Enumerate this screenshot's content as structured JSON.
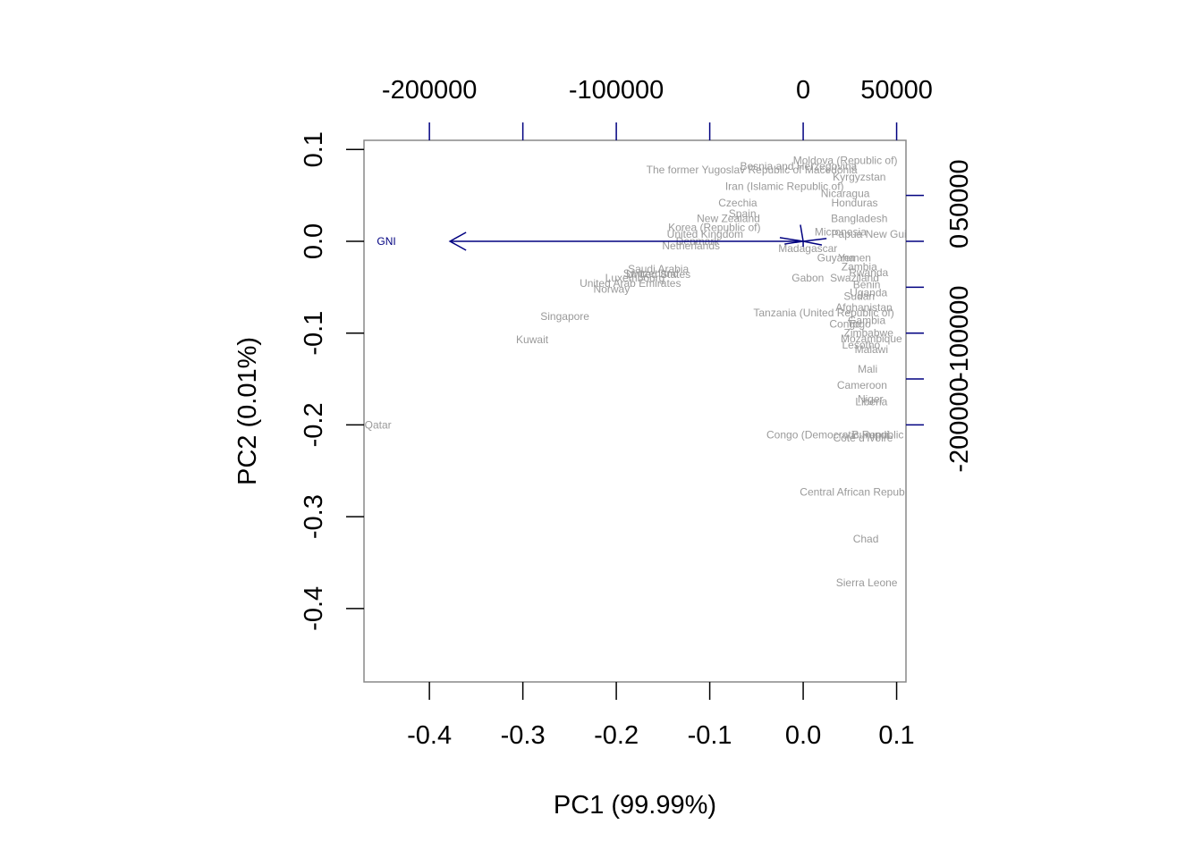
{
  "chart_data": {
    "type": "scatter",
    "subtype": "pca-biplot",
    "xlabel": "PC1 (99.99%)",
    "ylabel": "PC2 (0.01%)",
    "xlim": [
      -0.47,
      0.11
    ],
    "ylim": [
      -0.48,
      0.11
    ],
    "x_ticks": [
      "-0.4",
      "-0.3",
      "-0.2",
      "-0.1",
      "0.0",
      "0.1"
    ],
    "x_tick_values": [
      -0.4,
      -0.3,
      -0.2,
      -0.1,
      0.0,
      0.1
    ],
    "y_ticks": [
      "-0.4",
      "-0.3",
      "-0.2",
      "-0.1",
      "0.0",
      "0.1"
    ],
    "y_tick_values": [
      -0.4,
      -0.3,
      -0.2,
      -0.1,
      0.0,
      0.1
    ],
    "top_axis_ticks": [
      "-200000",
      "-100000",
      "0",
      "50000"
    ],
    "top_axis_values": [
      -200000,
      -100000,
      0,
      50000
    ],
    "right_axis_ticks": [
      "50000",
      "0",
      "-100000",
      "-200000"
    ],
    "right_axis_values": [
      50000,
      0,
      -100000,
      -200000
    ],
    "secondary_limits": {
      "x": [
        -200000,
        50000
      ],
      "y": [
        -200000,
        50000
      ]
    },
    "axis_color": "#000080",
    "point_label_color": "#999999",
    "grid": false,
    "points": [
      {
        "label": "Qatar",
        "x": -0.455,
        "y": -0.2
      },
      {
        "label": "Kuwait",
        "x": -0.29,
        "y": -0.107
      },
      {
        "label": "Singapore",
        "x": -0.255,
        "y": -0.082
      },
      {
        "label": "Norway",
        "x": -0.205,
        "y": -0.052
      },
      {
        "label": "United Arab Emirates",
        "x": -0.185,
        "y": -0.046
      },
      {
        "label": "Luxembourg",
        "x": -0.18,
        "y": -0.04
      },
      {
        "label": "Switzerland",
        "x": -0.163,
        "y": -0.035
      },
      {
        "label": "United States",
        "x": -0.155,
        "y": -0.036
      },
      {
        "label": "Saudi Arabia",
        "x": -0.155,
        "y": -0.03
      },
      {
        "label": "Netherlands",
        "x": -0.12,
        "y": -0.005
      },
      {
        "label": "Denmark",
        "x": -0.113,
        "y": 0.0
      },
      {
        "label": "United Kingdom",
        "x": -0.105,
        "y": 0.008
      },
      {
        "label": "Korea (Republic of)",
        "x": -0.095,
        "y": 0.015
      },
      {
        "label": "New Zealand",
        "x": -0.08,
        "y": 0.025
      },
      {
        "label": "Spain",
        "x": -0.065,
        "y": 0.03
      },
      {
        "label": "Czechia",
        "x": -0.07,
        "y": 0.042
      },
      {
        "label": "Iran (Islamic Republic of)",
        "x": -0.02,
        "y": 0.06
      },
      {
        "label": "The former Yugoslav Republic of Macedonia",
        "x": -0.055,
        "y": 0.078
      },
      {
        "label": "Bosnia and Herzegovina",
        "x": -0.005,
        "y": 0.082
      },
      {
        "label": "Moldova (Republic of)",
        "x": 0.045,
        "y": 0.088
      },
      {
        "label": "Kyrgyzstan",
        "x": 0.06,
        "y": 0.07
      },
      {
        "label": "Nicaragua",
        "x": 0.045,
        "y": 0.052
      },
      {
        "label": "Honduras",
        "x": 0.055,
        "y": 0.042
      },
      {
        "label": "Bangladesh",
        "x": 0.06,
        "y": 0.025
      },
      {
        "label": "Micronesia",
        "x": 0.04,
        "y": 0.01
      },
      {
        "label": "Papua New Guinea",
        "x": 0.08,
        "y": 0.008
      },
      {
        "label": "Madagascar",
        "x": 0.005,
        "y": -0.008
      },
      {
        "label": "Guyana",
        "x": 0.035,
        "y": -0.018
      },
      {
        "label": "Yemen",
        "x": 0.055,
        "y": -0.018
      },
      {
        "label": "Zambia",
        "x": 0.06,
        "y": -0.028
      },
      {
        "label": "Rwanda",
        "x": 0.07,
        "y": -0.034
      },
      {
        "label": "Gabon",
        "x": 0.005,
        "y": -0.04
      },
      {
        "label": "Swaziland",
        "x": 0.055,
        "y": -0.04
      },
      {
        "label": "Benin",
        "x": 0.068,
        "y": -0.047
      },
      {
        "label": "Uganda",
        "x": 0.07,
        "y": -0.056
      },
      {
        "label": "Sudan",
        "x": 0.06,
        "y": -0.06
      },
      {
        "label": "Afghanistan",
        "x": 0.065,
        "y": -0.072
      },
      {
        "label": "Tanzania (United Republic of)",
        "x": 0.022,
        "y": -0.078
      },
      {
        "label": "Gambia",
        "x": 0.068,
        "y": -0.086
      },
      {
        "label": "Congo",
        "x": 0.045,
        "y": -0.09
      },
      {
        "label": "Togo",
        "x": 0.06,
        "y": -0.09
      },
      {
        "label": "Zimbabwe",
        "x": 0.07,
        "y": -0.1
      },
      {
        "label": "Mozambique",
        "x": 0.073,
        "y": -0.106
      },
      {
        "label": "Lesotho",
        "x": 0.062,
        "y": -0.113
      },
      {
        "label": "Malawi",
        "x": 0.073,
        "y": -0.118
      },
      {
        "label": "Mali",
        "x": 0.069,
        "y": -0.139
      },
      {
        "label": "Cameroon",
        "x": 0.063,
        "y": -0.157
      },
      {
        "label": "Niger",
        "x": 0.072,
        "y": -0.172
      },
      {
        "label": "Liberia",
        "x": 0.073,
        "y": -0.175
      },
      {
        "label": "Congo (Democratic Republic of the)",
        "x": 0.052,
        "y": -0.211
      },
      {
        "label": "Burundi",
        "x": 0.072,
        "y": -0.211
      },
      {
        "label": "Côte d'Ivoire",
        "x": 0.064,
        "y": -0.214
      },
      {
        "label": "Central African Republic",
        "x": 0.058,
        "y": -0.273
      },
      {
        "label": "Chad",
        "x": 0.067,
        "y": -0.324
      },
      {
        "label": "Sierra Leone",
        "x": 0.068,
        "y": -0.372
      }
    ],
    "vectors": [
      {
        "label": "GNI",
        "x": -0.378,
        "y": 0.0
      }
    ]
  }
}
